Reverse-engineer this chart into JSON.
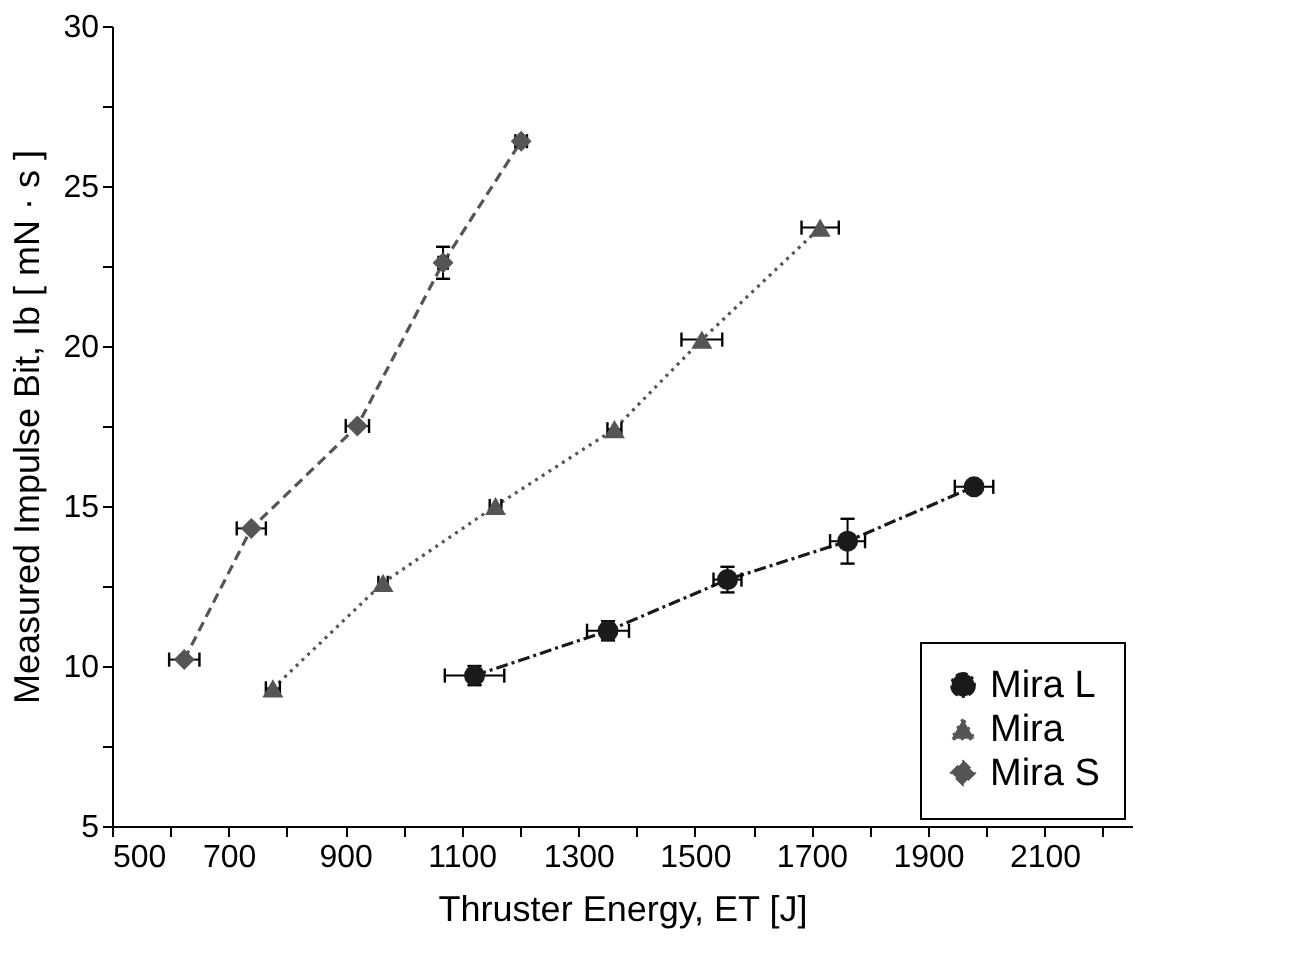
{
  "chart_data": {
    "type": "line",
    "xlabel": "Thruster Energy, ET [J]",
    "ylabel": "Measured Impulse Bit, Ib [ mN · s ]",
    "xlim": [
      500,
      2250
    ],
    "ylim": [
      5,
      30
    ],
    "xticks": [
      500,
      {
        "value": 600,
        "label": null
      },
      700,
      {
        "value": 800,
        "label": null
      },
      900,
      {
        "value": 1000,
        "label": null
      },
      1100,
      {
        "value": 1200,
        "label": null
      },
      1300,
      {
        "value": 1400,
        "label": null
      },
      1500,
      {
        "value": 1600,
        "label": null
      },
      1700,
      {
        "value": 1800,
        "label": null
      },
      1900,
      {
        "value": 2000,
        "label": null
      },
      2100,
      {
        "value": 2200,
        "label": null
      }
    ],
    "yticks": [
      5,
      {
        "value": 7.5,
        "label": null
      },
      10,
      {
        "value": 12.5,
        "label": null
      },
      15,
      {
        "value": 17.5,
        "label": null
      },
      20,
      {
        "value": 22.5,
        "label": null
      },
      25,
      {
        "value": 27.5,
        "label": null
      },
      30
    ],
    "grid": false,
    "legend": "bottom right",
    "series": [
      {
        "name": "Mira L",
        "color": "#1a1a1a",
        "marker": "circle",
        "line_style": "dashdot",
        "x": [
          1122,
          1351,
          1556,
          1762,
          1979
        ],
        "values": [
          9.7,
          11.1,
          12.7,
          13.9,
          15.6
        ],
        "errors": [
          0.3,
          0.3,
          0.4,
          0.7,
          null
        ],
        "xerrors": [
          51,
          36,
          24,
          30,
          33
        ]
      },
      {
        "name": "Mira",
        "color": "#555555",
        "marker": "triangle",
        "line_style": "dotted",
        "x": [
          776,
          965,
          1158,
          1362,
          1512,
          1715
        ],
        "values": [
          9.3,
          12.6,
          15.0,
          17.4,
          20.2,
          23.7
        ],
        "errors": [
          null,
          null,
          null,
          null,
          null,
          null
        ],
        "xerrors": [
          12,
          8,
          10,
          12,
          35,
          32
        ]
      },
      {
        "name": "Mira S",
        "color": "#555555",
        "marker": "diamond",
        "line_style": "dashed",
        "x": [
          624,
          739,
          921,
          1068,
          1202
        ],
        "values": [
          10.2,
          14.3,
          17.5,
          22.6,
          26.4
        ],
        "errors": [
          null,
          null,
          null,
          0.5,
          null
        ],
        "xerrors": [
          26,
          25,
          20,
          8,
          10
        ]
      }
    ]
  }
}
